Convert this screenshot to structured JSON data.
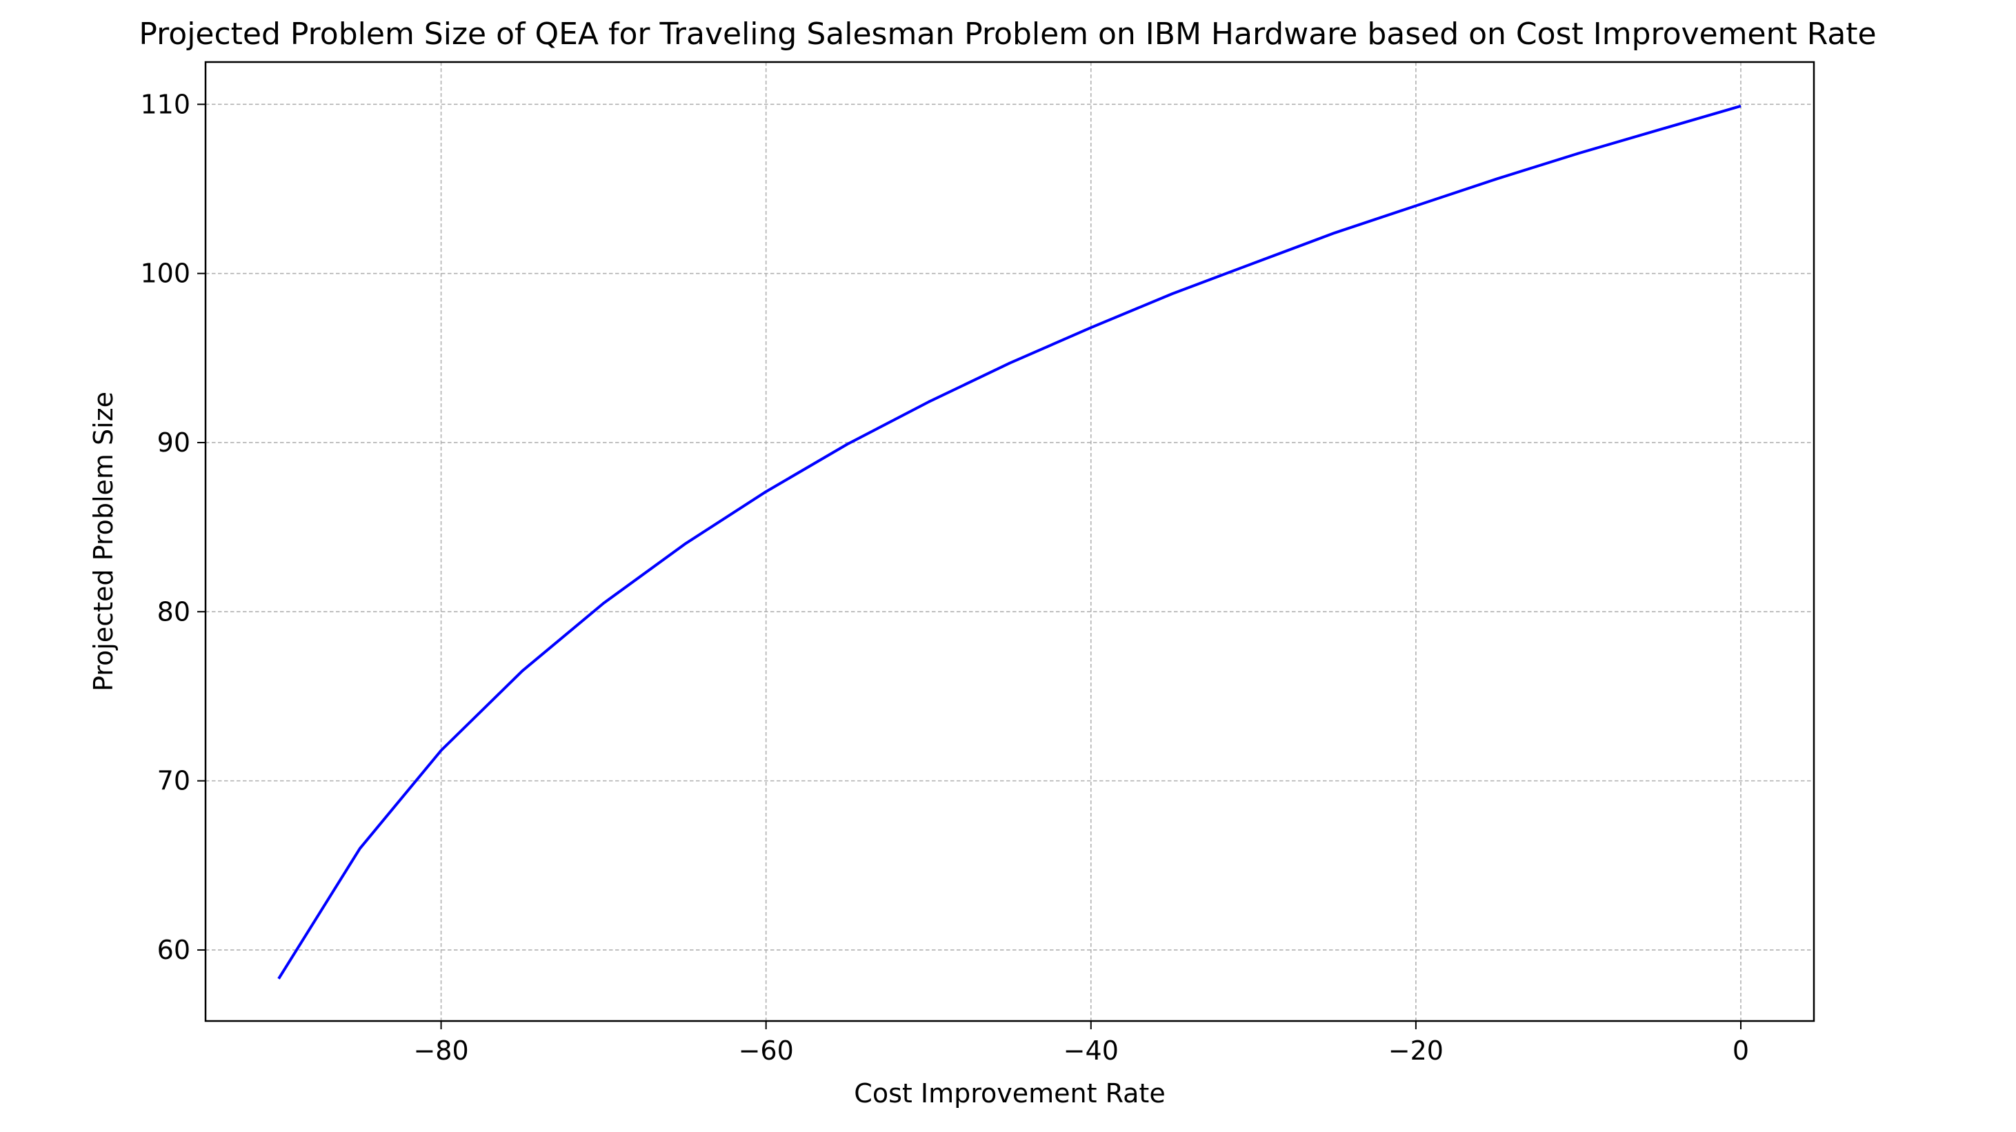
{
  "chart_data": {
    "type": "line",
    "title": "Projected Problem Size of QEA for Traveling Salesman Problem on IBM Hardware based on Cost Improvement Rate",
    "xlabel": "Cost Improvement Rate",
    "ylabel": "Projected Problem Size",
    "xlim": [
      -94.5,
      4.5
    ],
    "ylim": [
      55.8,
      112.5
    ],
    "xticks": [
      -80,
      -60,
      -40,
      -20,
      0
    ],
    "xtick_labels": [
      "−80",
      "−60",
      "−40",
      "−20",
      "0"
    ],
    "yticks": [
      60,
      70,
      80,
      90,
      100,
      110
    ],
    "ytick_labels": [
      "60",
      "70",
      "80",
      "90",
      "100",
      "110"
    ],
    "grid": true,
    "legend": "none",
    "series": [
      {
        "color": "#0000ff",
        "x": [
          -90,
          -85,
          -80,
          -75,
          -70,
          -65,
          -60,
          -55,
          -50,
          -45,
          -40,
          -35,
          -30,
          -25,
          -20,
          -15,
          -10,
          -5,
          0
        ],
        "y": [
          58.3,
          66.0,
          71.8,
          76.5,
          80.5,
          84.0,
          87.1,
          89.9,
          92.4,
          94.7,
          96.8,
          98.8,
          100.6,
          102.4,
          104.0,
          105.6,
          107.1,
          108.5,
          109.9
        ]
      }
    ]
  }
}
